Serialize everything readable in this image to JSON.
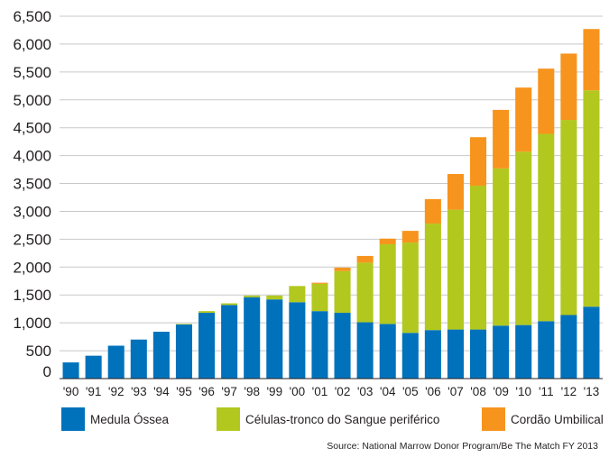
{
  "chart_data": {
    "type": "bar",
    "stacked": true,
    "categories": [
      "'90",
      "'91",
      "'92",
      "'93",
      "'94",
      "'95",
      "'96",
      "'97",
      "'98",
      "'99",
      "'00",
      "'01",
      "'02",
      "'03",
      "'04",
      "'05",
      "'06",
      "'07",
      "'08",
      "'09",
      "'10",
      "'11",
      "'12",
      "'13"
    ],
    "series": [
      {
        "name": "Medula Óssea",
        "color": "#0072bc",
        "values": [
          290,
          410,
          590,
          700,
          840,
          970,
          1180,
          1320,
          1460,
          1420,
          1370,
          1210,
          1180,
          1010,
          980,
          820,
          870,
          880,
          880,
          950,
          960,
          1030,
          1140,
          1290
        ]
      },
      {
        "name": "Células-tronco do Sangue periférico",
        "color": "#b2c81e",
        "values": [
          0,
          0,
          0,
          0,
          0,
          10,
          30,
          30,
          30,
          70,
          290,
          490,
          750,
          1070,
          1430,
          1620,
          1910,
          2150,
          2580,
          2820,
          3110,
          3360,
          3500,
          3880
        ]
      },
      {
        "name": "Cordão Umbilical",
        "color": "#f7941d",
        "values": [
          0,
          0,
          0,
          0,
          0,
          0,
          0,
          0,
          0,
          0,
          0,
          20,
          60,
          120,
          100,
          210,
          440,
          640,
          870,
          1050,
          1150,
          1170,
          1190,
          1100
        ]
      }
    ],
    "ylim": [
      0,
      6500
    ],
    "yticks": [
      "0",
      "500",
      "1,000",
      "1,500",
      "2,000",
      "2,500",
      "3,000",
      "3,500",
      "4,000",
      "4,500",
      "5,000",
      "5,500",
      "6,000",
      "6,500"
    ],
    "grid": true,
    "legend_position": "bottom",
    "source": "Source: National Marrow Donor Program/Be The Match FY 2013"
  }
}
